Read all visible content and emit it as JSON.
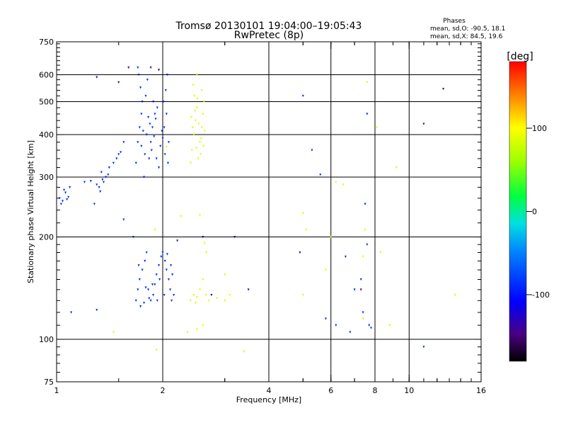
{
  "chart_data": {
    "type": "scatter",
    "title_line1": "Tromsø 20130101 19:04:00–19:05:43",
    "title_line2": "RwPretec (8p)",
    "xlabel": "Frequency [MHz]",
    "ylabel": "Stationary phase Virtual Height [km]",
    "x_scale": "log",
    "y_scale": "log",
    "xlim": [
      1,
      16
    ],
    "ylim": [
      75,
      750
    ],
    "xticks": [
      1,
      2,
      4,
      6,
      8,
      10,
      16
    ],
    "yticks": [
      75,
      100,
      200,
      300,
      400,
      500,
      600,
      750
    ],
    "x_gridlines": [
      2,
      4,
      6,
      8,
      10
    ],
    "y_gridlines": [
      100,
      200,
      300,
      400,
      500,
      600
    ],
    "grid": true,
    "stats": {
      "heading": "Phases",
      "line1": "mean, sd,O: -90.5, 18.1",
      "line2": "mean, sd,X:  84.5, 19.6"
    },
    "colorbar": {
      "label": "[deg]",
      "min": -180,
      "max": 180,
      "ticks": [
        100,
        0,
        -100
      ],
      "tick_labels": [
        "100",
        "0",
        "-100"
      ],
      "colormap": "rainbow"
    },
    "series": [
      {
        "mode": "O",
        "phase_deg": -90,
        "points": [
          [
            1.02,
            260
          ],
          [
            1.04,
            255
          ],
          [
            1.06,
            270
          ],
          [
            1.08,
            262
          ],
          [
            1.03,
            250
          ],
          [
            1.09,
            280
          ],
          [
            1.05,
            275
          ],
          [
            1.07,
            258
          ],
          [
            1.32,
            280
          ],
          [
            1.35,
            295
          ],
          [
            1.38,
            300
          ],
          [
            1.3,
            285
          ],
          [
            1.34,
            310
          ],
          [
            1.4,
            305
          ],
          [
            1.36,
            290
          ],
          [
            1.33,
            272
          ],
          [
            1.41,
            320
          ],
          [
            1.45,
            330
          ],
          [
            1.28,
            250
          ],
          [
            1.48,
            340
          ],
          [
            1.52,
            355
          ],
          [
            1.55,
            380
          ],
          [
            1.5,
            350
          ],
          [
            1.2,
            290
          ],
          [
            1.25,
            292
          ],
          [
            1.68,
            330
          ],
          [
            1.7,
            380
          ],
          [
            1.72,
            420
          ],
          [
            1.74,
            460
          ],
          [
            1.75,
            500
          ],
          [
            1.73,
            550
          ],
          [
            1.71,
            600
          ],
          [
            1.7,
            630
          ],
          [
            1.78,
            350
          ],
          [
            1.8,
            400
          ],
          [
            1.82,
            450
          ],
          [
            1.79,
            520
          ],
          [
            1.81,
            580
          ],
          [
            1.77,
            300
          ],
          [
            1.83,
            340
          ],
          [
            1.85,
            380
          ],
          [
            1.87,
            420
          ],
          [
            1.9,
            460
          ],
          [
            1.88,
            500
          ],
          [
            1.86,
            360
          ],
          [
            1.92,
            340
          ],
          [
            1.95,
            320
          ],
          [
            1.97,
            370
          ],
          [
            2.0,
            390
          ],
          [
            2.02,
            420
          ],
          [
            2.05,
            460
          ],
          [
            2.01,
            500
          ],
          [
            2.04,
            540
          ],
          [
            2.06,
            600
          ],
          [
            2.03,
            350
          ],
          [
            2.07,
            330
          ],
          [
            1.76,
            410
          ],
          [
            1.84,
            430
          ],
          [
            1.89,
            395
          ],
          [
            1.91,
            445
          ],
          [
            1.93,
            480
          ],
          [
            1.99,
            410
          ],
          [
            2.08,
            380
          ],
          [
            1.74,
            370
          ],
          [
            1.7,
            140
          ],
          [
            1.72,
            150
          ],
          [
            1.75,
            160
          ],
          [
            1.78,
            170
          ],
          [
            1.8,
            180
          ],
          [
            1.82,
            140
          ],
          [
            1.85,
            130
          ],
          [
            1.88,
            135
          ],
          [
            1.9,
            145
          ],
          [
            1.92,
            155
          ],
          [
            1.95,
            165
          ],
          [
            1.98,
            175
          ],
          [
            2.0,
            180
          ],
          [
            2.03,
            170
          ],
          [
            2.05,
            160
          ],
          [
            2.08,
            150
          ],
          [
            2.1,
            140
          ],
          [
            2.12,
            130
          ],
          [
            2.15,
            135
          ],
          [
            1.73,
            125
          ],
          [
            1.77,
            128
          ],
          [
            1.83,
            132
          ],
          [
            1.87,
            145
          ],
          [
            1.93,
            130
          ],
          [
            2.02,
            135
          ],
          [
            2.06,
            178
          ],
          [
            2.11,
            165
          ],
          [
            1.71,
            165
          ],
          [
            1.79,
            142
          ],
          [
            1.96,
            150
          ],
          [
            2.13,
            155
          ],
          [
            1.68,
            130
          ],
          [
            1.1,
            120
          ],
          [
            1.3,
            122
          ],
          [
            1.55,
            225
          ],
          [
            1.65,
            200
          ],
          [
            5.0,
            520
          ],
          [
            5.3,
            360
          ],
          [
            5.6,
            305
          ],
          [
            6.6,
            175
          ],
          [
            7.0,
            140
          ],
          [
            7.3,
            150
          ],
          [
            6.2,
            110
          ],
          [
            6.8,
            105
          ],
          [
            7.5,
            250
          ],
          [
            7.6,
            190
          ],
          [
            7.7,
            110
          ],
          [
            7.8,
            108
          ],
          [
            5.8,
            115
          ],
          [
            7.4,
            120
          ],
          [
            11,
            95
          ],
          [
            7.6,
            460
          ]
        ]
      },
      {
        "mode": "X",
        "phase_deg": 85,
        "points": [
          [
            2.4,
            330
          ],
          [
            2.42,
            360
          ],
          [
            2.45,
            400
          ],
          [
            2.48,
            440
          ],
          [
            2.5,
            480
          ],
          [
            2.46,
            520
          ],
          [
            2.44,
            560
          ],
          [
            2.5,
            600
          ],
          [
            2.52,
            340
          ],
          [
            2.55,
            380
          ],
          [
            2.58,
            420
          ],
          [
            2.6,
            460
          ],
          [
            2.62,
            500
          ],
          [
            2.58,
            540
          ],
          [
            2.56,
            350
          ],
          [
            2.43,
            420
          ],
          [
            2.41,
            450
          ],
          [
            2.47,
            470
          ],
          [
            2.53,
            430
          ],
          [
            2.57,
            390
          ],
          [
            2.61,
            370
          ],
          [
            2.63,
            410
          ],
          [
            2.51,
            510
          ],
          [
            2.49,
            365
          ],
          [
            2.4,
            130
          ],
          [
            2.45,
            135
          ],
          [
            2.5,
            133
          ],
          [
            2.55,
            140
          ],
          [
            2.6,
            150
          ],
          [
            2.65,
            135
          ],
          [
            2.7,
            130
          ],
          [
            2.48,
            128
          ],
          [
            2.85,
            132
          ],
          [
            3.0,
            130
          ],
          [
            3.1,
            135
          ],
          [
            2.35,
            105
          ],
          [
            2.5,
            107
          ],
          [
            2.6,
            110
          ],
          [
            2.66,
            180
          ],
          [
            2.25,
            230
          ],
          [
            1.45,
            105
          ],
          [
            1.9,
            210
          ],
          [
            1.92,
            93
          ],
          [
            3.4,
            92
          ],
          [
            2.55,
            232
          ],
          [
            2.63,
            192
          ],
          [
            3.0,
            155
          ],
          [
            2.05,
            368
          ],
          [
            7.6,
            570
          ],
          [
            8.1,
            420
          ],
          [
            7.5,
            210
          ],
          [
            7.4,
            175
          ],
          [
            8.3,
            180
          ],
          [
            5.0,
            235
          ],
          [
            5.1,
            210
          ],
          [
            5.0,
            135
          ],
          [
            7.4,
            115
          ],
          [
            8.8,
            110
          ],
          [
            5.8,
            160
          ],
          [
            6.0,
            200
          ],
          [
            9.2,
            320
          ],
          [
            13.5,
            135
          ],
          [
            6.2,
            290
          ],
          [
            6.5,
            285
          ]
        ]
      },
      {
        "mode": "other",
        "phase_deg": -150,
        "points": [
          [
            1.3,
            590
          ],
          [
            1.5,
            570
          ],
          [
            1.6,
            630
          ],
          [
            1.85,
            630
          ],
          [
            1.95,
            620
          ],
          [
            2.6,
            200
          ],
          [
            3.2,
            200
          ],
          [
            3.5,
            140
          ],
          [
            4.9,
            180
          ],
          [
            7.3,
            140
          ],
          [
            11,
            430
          ],
          [
            12.5,
            545
          ],
          [
            2.2,
            195
          ],
          [
            2.75,
            135
          ]
        ]
      }
    ]
  }
}
